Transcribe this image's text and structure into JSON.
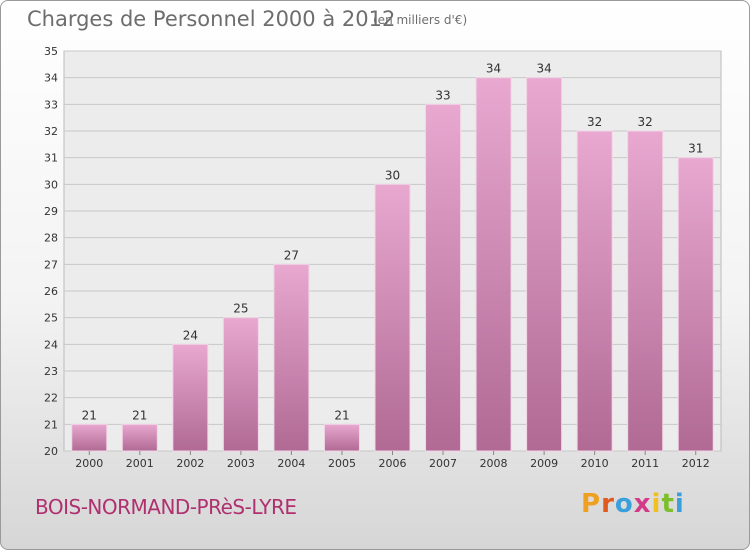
{
  "header": {
    "title": "Charges de Personnel 2000 à 2012",
    "subtitle": "(en milliers d'€)"
  },
  "footer": {
    "commune": "BOIS-NORMAND-PRèS-LYRE",
    "logo_letters": [
      "P",
      "r",
      "o",
      "x",
      "i",
      "t",
      "i"
    ],
    "logo_colors": [
      "#f0a020",
      "#e05a1e",
      "#3aa0dc",
      "#d43a8a",
      "#f0c020",
      "#7cbf2a",
      "#3aa0dc"
    ]
  },
  "colors": {
    "bar_top": "#e8a8d0",
    "bar_bottom": "#b06a94",
    "grid": "#c8c8c8",
    "axis_text": "#333333"
  },
  "chart_data": {
    "type": "bar",
    "title": "Charges de Personnel 2000 à 2012",
    "subtitle": "(en milliers d'€)",
    "categories": [
      "2000",
      "2001",
      "2002",
      "2003",
      "2004",
      "2005",
      "2006",
      "2007",
      "2008",
      "2009",
      "2010",
      "2011",
      "2012"
    ],
    "values": [
      21,
      21,
      24,
      25,
      27,
      21,
      30,
      33,
      34,
      34,
      32,
      32,
      31
    ],
    "ylim": [
      20,
      35
    ],
    "yticks": [
      20,
      21,
      22,
      23,
      24,
      25,
      26,
      27,
      28,
      29,
      30,
      31,
      32,
      33,
      34,
      35
    ],
    "grid": true,
    "data_labels": true
  }
}
